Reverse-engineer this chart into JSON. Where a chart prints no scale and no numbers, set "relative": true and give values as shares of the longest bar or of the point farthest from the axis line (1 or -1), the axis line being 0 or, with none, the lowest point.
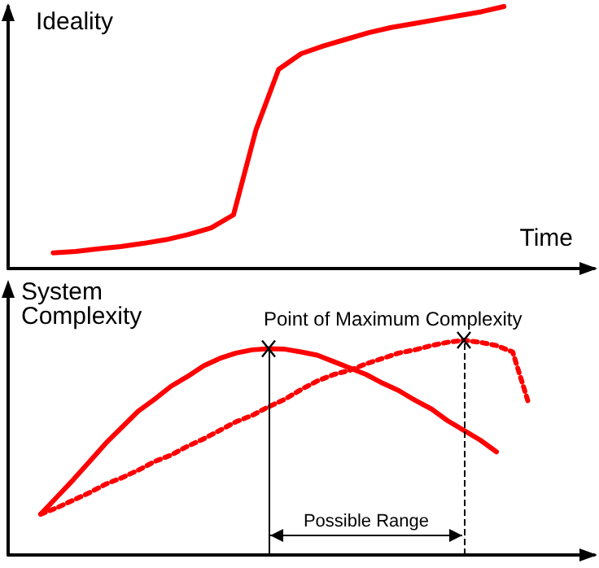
{
  "chart_data": [
    {
      "type": "line",
      "ylabel": "Ideality",
      "xlabel": "Time",
      "relative": true,
      "tick_labels": false,
      "line_style": "solid",
      "categories": [
        null,
        null,
        null,
        null,
        null,
        null,
        null,
        null,
        null,
        null,
        null,
        null,
        null,
        null,
        null,
        null,
        null,
        null,
        null,
        null,
        null,
        null,
        null,
        null,
        null,
        null,
        null
      ],
      "series": [
        {
          "color": "#ff0000",
          "values": [
            null,
            null,
            0.06,
            0.065,
            0.075,
            0.084,
            0.096,
            0.11,
            0.13,
            0.155,
            0.205,
            0.53,
            0.76,
            0.82,
            0.85,
            0.875,
            0.9,
            0.92,
            0.935,
            0.95,
            0.965,
            0.98,
            1,
            null,
            null,
            null,
            null
          ]
        }
      ]
    },
    {
      "type": "line",
      "ylabel": "System Complexity",
      "relative": true,
      "tick_labels": false,
      "annotations": [
        "Point of Maximum Complexity",
        "Possible Range"
      ],
      "categories": [
        null,
        null,
        null,
        null,
        null,
        null,
        null,
        null,
        null,
        null,
        null,
        null,
        null,
        null,
        null,
        null,
        null,
        null,
        null,
        null,
        null,
        null,
        null,
        null,
        null,
        null,
        null,
        null,
        null,
        null,
        null,
        null,
        null,
        null,
        null,
        null,
        null
      ],
      "series": [
        {
          "color": "#ff0000",
          "line_style": "solid",
          "values": [
            null,
            null,
            0.19,
            0.27,
            0.35,
            0.435,
            0.52,
            0.595,
            0.67,
            0.725,
            0.785,
            0.83,
            0.88,
            0.915,
            0.94,
            0.955,
            0.96,
            0.958,
            0.945,
            0.93,
            0.9,
            0.87,
            0.84,
            0.8,
            0.765,
            0.72,
            0.68,
            0.625,
            0.58,
            0.535,
            0.48,
            null,
            null,
            null,
            null,
            null,
            null
          ]
        },
        {
          "color": "#ff0000",
          "line_style": "dotted",
          "values": [
            null,
            null,
            0.19,
            0.22,
            0.255,
            0.29,
            0.33,
            0.36,
            0.395,
            0.435,
            0.465,
            0.505,
            0.54,
            0.58,
            0.62,
            0.65,
            0.69,
            0.725,
            0.77,
            0.81,
            0.84,
            0.86,
            0.89,
            0.915,
            0.94,
            0.955,
            0.975,
            0.99,
            1,
            0.99,
            0.975,
            0.945,
            0.7,
            null,
            null,
            null,
            null
          ]
        }
      ]
    }
  ]
}
